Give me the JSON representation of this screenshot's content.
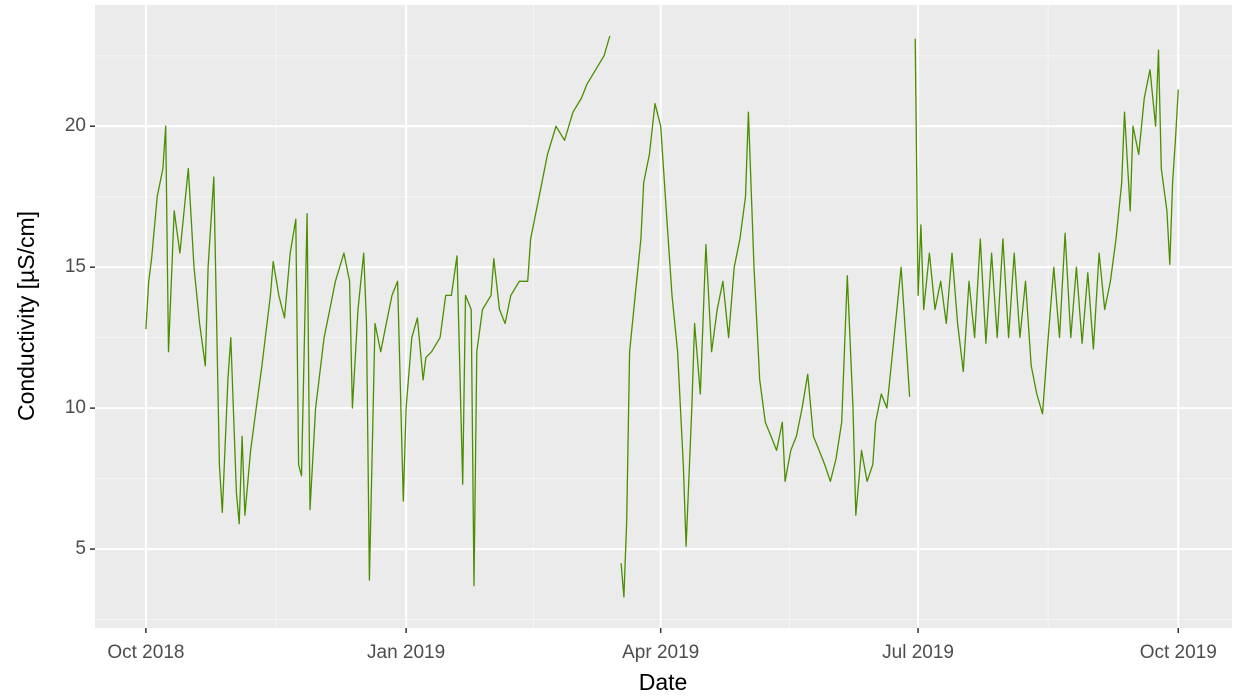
{
  "chart_data": {
    "type": "line",
    "x_label": "Date",
    "y_label": "Conductivity [µS/cm]",
    "xlim": [
      "2018-09-13",
      "2019-10-20"
    ],
    "xticks": [
      {
        "value": "2018-10-01",
        "label": "Oct 2018"
      },
      {
        "value": "2019-01-01",
        "label": "Jan 2019"
      },
      {
        "value": "2019-04-01",
        "label": "Apr 2019"
      },
      {
        "value": "2019-07-01",
        "label": "Jul 2019"
      },
      {
        "value": "2019-10-01",
        "label": "Oct 2019"
      }
    ],
    "ylim": [
      2.2,
      24.3
    ],
    "yticks": [
      5,
      10,
      15,
      20
    ],
    "grid": true,
    "series": [
      {
        "name": "Conductivity",
        "color": "#4a8f00",
        "x": [
          "2018-10-01",
          "2018-10-02",
          "2018-10-03",
          "2018-10-05",
          "2018-10-07",
          "2018-10-08",
          "2018-10-09",
          "2018-10-11",
          "2018-10-13",
          "2018-10-16",
          "2018-10-18",
          "2018-10-20",
          "2018-10-22",
          "2018-10-23",
          "2018-10-25",
          "2018-10-27",
          "2018-10-28",
          "2018-10-30",
          "2018-10-31",
          "2018-11-02",
          "2018-11-03",
          "2018-11-04",
          "2018-11-05",
          "2018-11-07",
          "2018-11-09",
          "2018-11-11",
          "2018-11-14",
          "2018-11-15",
          "2018-11-17",
          "2018-11-19",
          "2018-11-21",
          "2018-11-23",
          "2018-11-24",
          "2018-11-25",
          "2018-11-27",
          "2018-11-28",
          "2018-11-30",
          "2018-12-03",
          "2018-12-05",
          "2018-12-07",
          "2018-12-10",
          "2018-12-12",
          "2018-12-13",
          "2018-12-15",
          "2018-12-17",
          "2018-12-18",
          "2018-12-19",
          "2018-12-21",
          "2018-12-23",
          "2018-12-25",
          "2018-12-27",
          "2018-12-29",
          "2018-12-31",
          "2019-01-01",
          "2019-01-03",
          "2019-01-05",
          "2019-01-07",
          "2019-01-08",
          "2019-01-10",
          "2019-01-13",
          "2019-01-15",
          "2019-01-17",
          "2019-01-19",
          "2019-01-21",
          "2019-01-22",
          "2019-01-24",
          "2019-01-25",
          "2019-01-26",
          "2019-01-28",
          "2019-01-31",
          "2019-02-01",
          "2019-02-03",
          "2019-02-05",
          "2019-02-07",
          "2019-02-10",
          "2019-02-13",
          "2019-02-14",
          "2019-02-17",
          "2019-02-20",
          "2019-02-23",
          "2019-02-26",
          "2019-03-01",
          "2019-03-04",
          "2019-03-06",
          "2019-03-09",
          "2019-03-12",
          "2019-03-14",
          "2019-03-16",
          "2019-03-18",
          "2019-03-19",
          "2019-03-20",
          "2019-03-21",
          "2019-03-23",
          "2019-03-25",
          "2019-03-26",
          "2019-03-28",
          "2019-03-30",
          "2019-04-01",
          "2019-04-03",
          "2019-04-05",
          "2019-04-07",
          "2019-04-09",
          "2019-04-10",
          "2019-04-12",
          "2019-04-13",
          "2019-04-15",
          "2019-04-17",
          "2019-04-19",
          "2019-04-21",
          "2019-04-23",
          "2019-04-25",
          "2019-04-27",
          "2019-04-29",
          "2019-05-01",
          "2019-05-02",
          "2019-05-04",
          "2019-05-06",
          "2019-05-08",
          "2019-05-10",
          "2019-05-12",
          "2019-05-14",
          "2019-05-15",
          "2019-05-17",
          "2019-05-19",
          "2019-05-21",
          "2019-05-23",
          "2019-05-25",
          "2019-05-27",
          "2019-05-29",
          "2019-05-31",
          "2019-06-02",
          "2019-06-04",
          "2019-06-06",
          "2019-06-08",
          "2019-06-09",
          "2019-06-11",
          "2019-06-13",
          "2019-06-15",
          "2019-06-16",
          "2019-06-18",
          "2019-06-20",
          "2019-06-22",
          "2019-06-24",
          "2019-06-25",
          "2019-06-27",
          "2019-06-28",
          "2019-06-29",
          "2019-06-30",
          "2019-07-01",
          "2019-07-02",
          "2019-07-03",
          "2019-07-05",
          "2019-07-07",
          "2019-07-09",
          "2019-07-11",
          "2019-07-13",
          "2019-07-15",
          "2019-07-17",
          "2019-07-19",
          "2019-07-21",
          "2019-07-23",
          "2019-07-25",
          "2019-07-27",
          "2019-07-29",
          "2019-07-31",
          "2019-08-02",
          "2019-08-04",
          "2019-08-06",
          "2019-08-08",
          "2019-08-10",
          "2019-08-12",
          "2019-08-14",
          "2019-08-16",
          "2019-08-18",
          "2019-08-20",
          "2019-08-22",
          "2019-08-24",
          "2019-08-26",
          "2019-08-28",
          "2019-08-30",
          "2019-09-01",
          "2019-09-03",
          "2019-09-05",
          "2019-09-07",
          "2019-09-09",
          "2019-09-11",
          "2019-09-12",
          "2019-09-14",
          "2019-09-15",
          "2019-09-17",
          "2019-09-19",
          "2019-09-21",
          "2019-09-23",
          "2019-09-24",
          "2019-09-25",
          "2019-09-27",
          "2019-09-28",
          "2019-09-29",
          "2019-09-30",
          "2019-10-01"
        ],
        "values": [
          12.8,
          14.5,
          15.3,
          17.5,
          18.5,
          20,
          12,
          17,
          15.5,
          18.5,
          15,
          13,
          11.5,
          15,
          18.2,
          8,
          6.3,
          11,
          12.5,
          7,
          5.9,
          9,
          6.2,
          8.5,
          10,
          11.5,
          14,
          15.2,
          14,
          13.2,
          15.5,
          16.7,
          8,
          7.6,
          16.9,
          6.4,
          10,
          12.5,
          13.5,
          14.5,
          15.5,
          14.5,
          10,
          13.5,
          15.5,
          13,
          3.9,
          13,
          12,
          13,
          14,
          14.5,
          6.7,
          10,
          12.5,
          13.2,
          11,
          11.8,
          12,
          12.5,
          14,
          14,
          15.4,
          7.3,
          14,
          13.5,
          3.7,
          12,
          13.5,
          14,
          15.3,
          13.5,
          13,
          14,
          14.5,
          14.5,
          16,
          17.5,
          19,
          20,
          19.5,
          20.5,
          21,
          21.5,
          22,
          22.5,
          23.2,
          null,
          4.5,
          3.3,
          6,
          12,
          14,
          16,
          18,
          19,
          20.8,
          20,
          17,
          14,
          12,
          8,
          5.1,
          10,
          13,
          10.5,
          15.8,
          12,
          13.5,
          14.5,
          12.5,
          15,
          16,
          17.5,
          20.5,
          15,
          11,
          9.5,
          9,
          8.5,
          9.5,
          7.4,
          8.5,
          9,
          10,
          11.2,
          9,
          8.5,
          8,
          7.4,
          8.2,
          9.5,
          14.7,
          10,
          6.2,
          8.5,
          7.4,
          8,
          9.5,
          10.5,
          10,
          12,
          14,
          15,
          12,
          10.4,
          null,
          23.1,
          14,
          16.5,
          13.5,
          15.5,
          13.5,
          14.5,
          13,
          15.5,
          13,
          11.3,
          14.5,
          12.5,
          16,
          12.3,
          15.5,
          12.5,
          16,
          12.5,
          15.5,
          12.5,
          14.5,
          11.5,
          10.5,
          9.8,
          12.5,
          15,
          12.5,
          16.2,
          12.5,
          15,
          12.3,
          14.8,
          12.1,
          15.5,
          13.5,
          14.5,
          16,
          18,
          20.5,
          17,
          20,
          19,
          21,
          22,
          20,
          22.7,
          18.5,
          17,
          15.1,
          18,
          19.5,
          21.3
        ]
      }
    ]
  }
}
